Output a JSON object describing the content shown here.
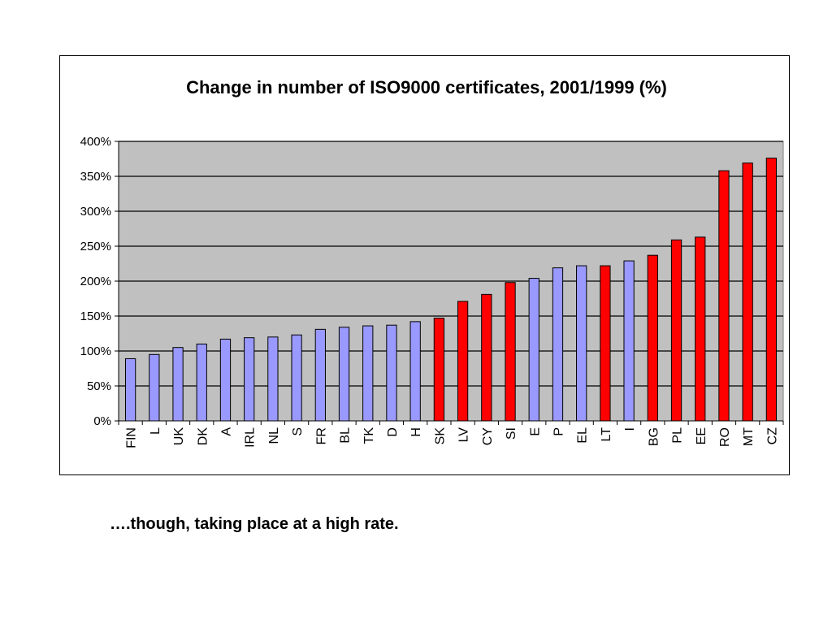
{
  "caption": "….though, taking place at a high rate.",
  "chart_data": {
    "type": "bar",
    "title": "Change in number of ISO9000 certificates, 2001/1999 (%)",
    "xlabel": "",
    "ylabel": "",
    "ylim": [
      0,
      400
    ],
    "y_tick_step": 50,
    "y_tick_format": "percent",
    "grid": true,
    "plot_background": "#c0c0c0",
    "categories": [
      "FIN",
      "L",
      "UK",
      "DK",
      "A",
      "IRL",
      "NL",
      "S",
      "FR",
      "BL",
      "TK",
      "D",
      "H",
      "SK",
      "LV",
      "CY",
      "SI",
      "E",
      "P",
      "EL",
      "LT",
      "I",
      "BG",
      "PL",
      "EE",
      "RO",
      "MT",
      "CZ"
    ],
    "values": [
      89,
      95,
      105,
      110,
      117,
      119,
      120,
      123,
      131,
      134,
      136,
      137,
      142,
      147,
      171,
      181,
      198,
      204,
      219,
      222,
      222,
      229,
      237,
      259,
      263,
      358,
      369,
      376
    ],
    "groups": [
      "blue",
      "blue",
      "blue",
      "blue",
      "blue",
      "blue",
      "blue",
      "blue",
      "blue",
      "blue",
      "blue",
      "blue",
      "blue",
      "red",
      "red",
      "red",
      "red",
      "blue",
      "blue",
      "blue",
      "red",
      "blue",
      "red",
      "red",
      "red",
      "red",
      "red",
      "red"
    ],
    "colors": {
      "blue": "#9999ff",
      "red": "#ff0000"
    }
  }
}
